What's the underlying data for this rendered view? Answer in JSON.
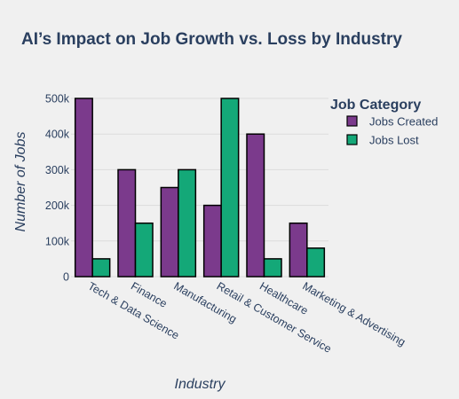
{
  "chart_data": {
    "type": "bar",
    "title": "AI’s Impact on Job Growth vs. Loss by Industry",
    "xlabel": "Industry",
    "ylabel": "Number of Jobs",
    "categories": [
      "Tech & Data Science",
      "Finance",
      "Manufacturing",
      "Retail & Customer Service",
      "Healthcare",
      "Marketing & Advertising"
    ],
    "series": [
      {
        "name": "Jobs Created",
        "color": "#7b3a8c",
        "values": [
          500000,
          300000,
          250000,
          200000,
          400000,
          150000
        ]
      },
      {
        "name": "Jobs Lost",
        "color": "#14a878",
        "values": [
          50000,
          150000,
          300000,
          500000,
          50000,
          80000
        ]
      }
    ],
    "ylim": [
      0,
      500000
    ],
    "yticks": [
      0,
      100000,
      200000,
      300000,
      400000,
      500000
    ],
    "ytick_labels": [
      "0",
      "100k",
      "200k",
      "300k",
      "400k",
      "500k"
    ],
    "legend": {
      "title": "Job Category",
      "position": "top-right"
    },
    "grid": true
  }
}
